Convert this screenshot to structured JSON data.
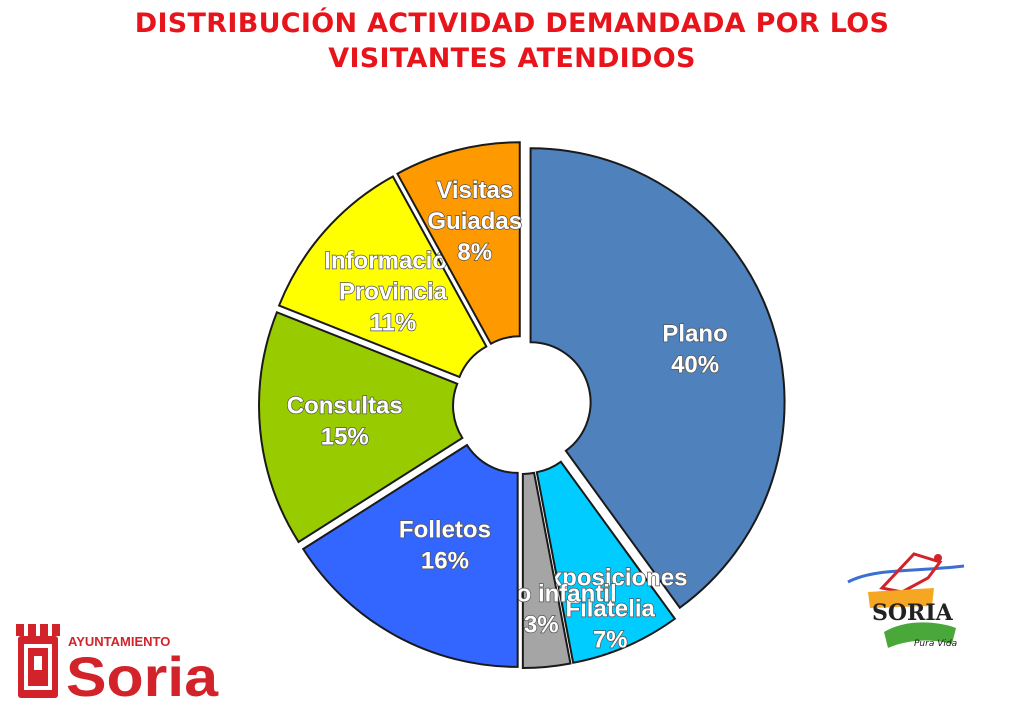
{
  "title": {
    "line1": "DISTRIBUCIÓN ACTIVIDAD DEMANDADA POR LOS",
    "line2": "VISITANTES ATENDIDOS"
  },
  "chart_data": {
    "type": "pie",
    "title": "DISTRIBUCIÓN ACTIVIDAD DEMANDADA POR LOS VISITANTES ATENDIDOS",
    "slices": [
      {
        "label": "Plano",
        "value": 40,
        "display": "40%",
        "color": "#4f81bd"
      },
      {
        "label": "Exposiciones Filatelia",
        "value": 7,
        "display": "7%",
        "color": "#00ccff"
      },
      {
        "label": "Plano infantil",
        "value": 3,
        "display": "3%",
        "color": "#a5a5a5"
      },
      {
        "label": "Folletos",
        "value": 16,
        "display": "16%",
        "color": "#3366ff"
      },
      {
        "label": "Consultas",
        "value": 15,
        "display": "15%",
        "color": "#99cc00"
      },
      {
        "label": "Información Provincia",
        "value": 11,
        "display": "11%",
        "color": "#ffff00"
      },
      {
        "label": "Visitas Guiadas",
        "value": 8,
        "display": "8%",
        "color": "#ff9900"
      }
    ],
    "labels": [
      {
        "lines": [
          "Plano",
          "40%"
        ]
      },
      {
        "lines": [
          "Exposiciones",
          "Filatelia",
          "7%"
        ]
      },
      {
        "lines": [
          "Plano infantil",
          "3%"
        ]
      },
      {
        "lines": [
          "Folletos",
          "16%"
        ]
      },
      {
        "lines": [
          "Consultas",
          "15%"
        ]
      },
      {
        "lines": [
          "Información",
          "Provincia",
          "11%"
        ]
      },
      {
        "lines": [
          "Visitas",
          "Guiadas",
          "8%"
        ]
      }
    ]
  },
  "logos": {
    "ayuntamiento_top": "AYUNTAMIENTO",
    "ayuntamiento_main": "Soria",
    "soria_brand": "SORIA",
    "soria_tagline": "Pura Vida"
  },
  "colors": {
    "title": "#e8141b",
    "logo_red": "#d2232a"
  }
}
